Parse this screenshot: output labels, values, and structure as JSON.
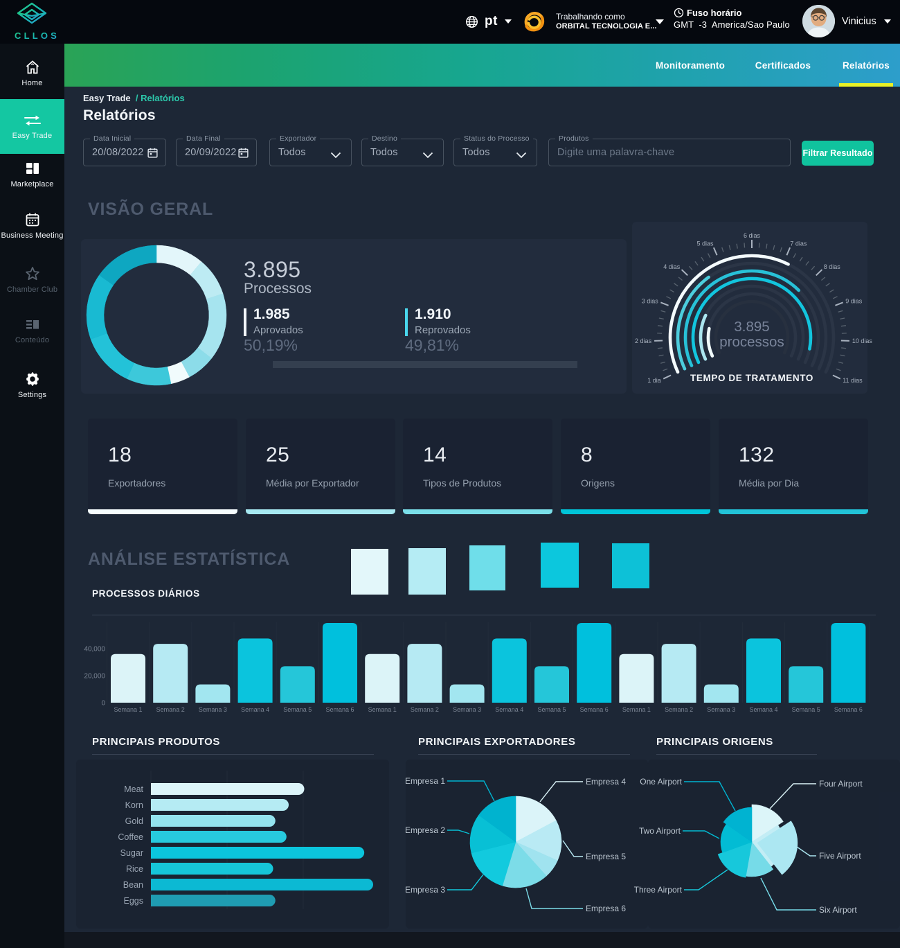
{
  "app": {
    "brand": "CLLOS",
    "language": "pt",
    "working_as_label": "Trabalhando como",
    "working_as_value": "ORBITAL TECNOLOGIA E...",
    "timezone_label": "Fuso horário",
    "timezone_value": "GMT  -3  America/Sao Paulo",
    "user_name": "Vinicius"
  },
  "sidebar": {
    "items": [
      {
        "label": "Home",
        "icon": "home-icon",
        "state": "normal"
      },
      {
        "label": "Easy Trade",
        "icon": "easy-trade-icon",
        "state": "active"
      },
      {
        "label": "Marketplace",
        "icon": "marketplace-icon",
        "state": "normal"
      },
      {
        "label": "Business Meeting",
        "icon": "business-meeting-icon",
        "state": "normal"
      },
      {
        "label": "Chamber Club",
        "icon": "chamber-club-icon",
        "state": "disabled"
      },
      {
        "label": "Conteúdo",
        "icon": "conteudo-icon",
        "state": "disabled"
      },
      {
        "label": "Settings",
        "icon": "settings-icon",
        "state": "normal"
      }
    ]
  },
  "tabs": [
    {
      "label": "Monitoramento",
      "active": false
    },
    {
      "label": "Certificados",
      "active": false
    },
    {
      "label": "Relatórios",
      "active": true
    }
  ],
  "breadcrumb": {
    "parent": "Easy Trade",
    "current": "/ Relatórios"
  },
  "page_title": "Relatórios",
  "filters": {
    "fields": [
      {
        "label": "Data Inicial",
        "value": "20/08/2022",
        "type": "date"
      },
      {
        "label": "Data Final",
        "value": "20/09/2022",
        "type": "date"
      },
      {
        "label": "Exportador",
        "value": "Todos",
        "type": "select"
      },
      {
        "label": "Destino",
        "value": "Todos",
        "type": "select"
      },
      {
        "label": "Status do Processo",
        "value": "Todos",
        "type": "select"
      },
      {
        "label": "Produtos",
        "placeholder": "Digite uma palavra-chave",
        "type": "text"
      }
    ],
    "submit_label": "Filtrar Resultado"
  },
  "sections": {
    "overview_title": "VISÃO GERAL",
    "statistics_title": "ANÁLISE ESTATÍSTICA",
    "daily_title": "PROCESSOS DIÁRIOS",
    "products_title": "PRINCIPAIS PRODUTOS",
    "exporters_title": "PRINCIPAIS EXPORTADORES",
    "origins_title": "PRINCIPAIS ORIGENS"
  },
  "overview": {
    "total_value": "3.895",
    "total_label": "Processos",
    "approved_value": "1.985",
    "approved_label": "Aprovados",
    "approved_pct": "50,19%",
    "approved_accent": "#f2f6fa",
    "reproved_value": "1.910",
    "reproved_label": "Reprovados",
    "reproved_pct": "49,81%",
    "reproved_accent": "#49d6ec"
  },
  "stats": {
    "cards": [
      {
        "value": "18",
        "label": "Exportadores",
        "bar_color": "#f6fdfe"
      },
      {
        "value": "25",
        "label": "Média por Exportador",
        "bar_color": "#a7e9f2"
      },
      {
        "value": "14",
        "label": "Tipos de Produtos",
        "bar_color": "#7adfe9"
      },
      {
        "value": "8",
        "label": "Origens",
        "bar_color": "#00c5d9"
      },
      {
        "value": "132",
        "label": "Média por Dia",
        "bar_color": "#22c3d8"
      }
    ]
  },
  "statistics_legend": {
    "colors": [
      "#e3f7fa",
      "#b5ecf4",
      "#6fdeea",
      "#0cc7dd",
      "#0dc1d7"
    ]
  },
  "chart_data": [
    {
      "id": "overview_donut",
      "type": "pie",
      "title": "Processos (donut)",
      "total": "3.895",
      "slices": [
        {
          "angle_deg": 40,
          "color": "#e3f6fa"
        },
        {
          "angle_deg": 32,
          "color": "#bdebf3"
        },
        {
          "angle_deg": 56,
          "color": "#a6e4ef"
        },
        {
          "angle_deg": 24,
          "color": "#8cdce9"
        },
        {
          "angle_deg": 16,
          "color": "#f1fbfc"
        },
        {
          "angle_deg": 37,
          "color": "#3dc8da"
        },
        {
          "angle_deg": 45,
          "color": "#23c2d8"
        },
        {
          "angle_deg": 55,
          "color": "#19bad2"
        },
        {
          "angle_deg": 55,
          "color": "#0ea7c1"
        }
      ]
    },
    {
      "id": "treatment_gauge",
      "type": "radial-gauge",
      "title": "TEMPO DE TRATAMENTO",
      "center_value": "3.895",
      "center_label": "processos",
      "axis": {
        "min": 1,
        "max": 11,
        "start_angle": -115,
        "end_angle": 115,
        "tick_labels": [
          "1 dia",
          "2 dias",
          "3 dias",
          "4 dias",
          "5 dias",
          "6 dias",
          "7 dias",
          "8 dias",
          "9 dias",
          "10 dias",
          "11 dias"
        ]
      },
      "rings": [
        {
          "value_dias": 7.15,
          "color": "#f4fbfd"
        },
        {
          "value_dias": 4.45,
          "color": "#4ccddd"
        },
        {
          "value_dias": 7.95,
          "color": "#28c1d8"
        },
        {
          "value_dias": 10.4,
          "color": "#12c5de"
        },
        {
          "value_dias": 3.2,
          "color": "#abe5ef"
        },
        {
          "value_dias": 2.6,
          "color": "#f0fafb"
        }
      ]
    },
    {
      "id": "daily_processes",
      "type": "bar",
      "title": "PROCESSOS DIÁRIOS",
      "ylabels": [
        "0",
        "20,000",
        "40,000"
      ],
      "ylim": [
        0,
        59000
      ],
      "categories": [
        "Semana 1",
        "Semana 2",
        "Semana 3",
        "Semana 4",
        "Semana 5",
        "Semana 6",
        "Semana 1",
        "Semana 2",
        "Semana 3",
        "Semana 4",
        "Semana 5",
        "Semana 6",
        "Semana 1",
        "Semana 2",
        "Semana 3",
        "Semana 4",
        "Semana 5",
        "Semana 6"
      ],
      "values": [
        36000,
        43500,
        13500,
        47500,
        27000,
        59000,
        36000,
        43500,
        13500,
        47500,
        27000,
        59000,
        36000,
        43500,
        13500,
        47500,
        27000,
        59000
      ],
      "colors": [
        "#dcf4f8",
        "#b6eaf3",
        "#a2e6f0",
        "#0bc4dd",
        "#25c6d9",
        "#00c0dd",
        "#dcf4f8",
        "#b6eaf3",
        "#a2e6f0",
        "#0bc4dd",
        "#25c6d9",
        "#00c0dd",
        "#dcf4f8",
        "#b6eaf3",
        "#a2e6f0",
        "#0bc4dd",
        "#25c6d9",
        "#00c0dd"
      ]
    },
    {
      "id": "top_products",
      "type": "bar",
      "orientation": "horizontal",
      "title": "PRINCIPAIS PRODUTOS",
      "categories": [
        "Meat",
        "Korn",
        "Gold",
        "Coffee",
        "Sugar",
        "Rice",
        "Bean",
        "Eggs"
      ],
      "values": [
        69,
        62,
        56,
        61,
        96,
        55,
        100,
        56
      ],
      "colors": [
        "#dcf4f9",
        "#b5ebf3",
        "#94e3ee",
        "#27cade",
        "#0bc5dd",
        "#16c6d9",
        "#0cb9d3",
        "#1f9cb2"
      ]
    },
    {
      "id": "top_exporters",
      "type": "pie",
      "title": "PRINCIPAIS EXPORTADORES",
      "slices": [
        {
          "label": "Empresa 4",
          "angle_deg": 62,
          "color": "#dbf4f9"
        },
        {
          "label": "Empresa 5",
          "angle_deg": 52,
          "color": "#b9eaf4"
        },
        {
          "label": "",
          "angle_deg": 24,
          "color": "#a0e3ef"
        },
        {
          "label": "Empresa 6",
          "angle_deg": 59,
          "color": "#7cdce8"
        },
        {
          "label": "Empresa 3",
          "angle_deg": 59,
          "color": "#12cade"
        },
        {
          "label": "Empresa 2",
          "angle_deg": 50,
          "color": "#08c0d5"
        },
        {
          "label": "Empresa 1",
          "angle_deg": 54,
          "color": "#00b3cf"
        }
      ]
    },
    {
      "id": "top_origins",
      "type": "pie",
      "variable_radius": true,
      "title": "PRINCIPAIS ORIGENS",
      "slices": [
        {
          "label": "Four Airport",
          "angle_deg": 57,
          "color": "#dcf5f9",
          "radius": 54
        },
        {
          "label": "Five Airport",
          "angle_deg": 85,
          "color": "#ace7f2",
          "radius": 58,
          "pullout": 8,
          "under_color": "#c3edf5",
          "under_radius": 45
        },
        {
          "label": "Six Airport",
          "angle_deg": 48,
          "color": "#76dbe8",
          "radius": 50
        },
        {
          "label": "Three Airport",
          "angle_deg": 60,
          "color": "#17c8db",
          "radius": 52
        },
        {
          "label": "Two Airport",
          "angle_deg": 55,
          "color": "#02bcd4",
          "radius": 45
        },
        {
          "label": "One Airport",
          "angle_deg": 55,
          "color": "#00b3d1",
          "radius": 50
        }
      ]
    }
  ]
}
